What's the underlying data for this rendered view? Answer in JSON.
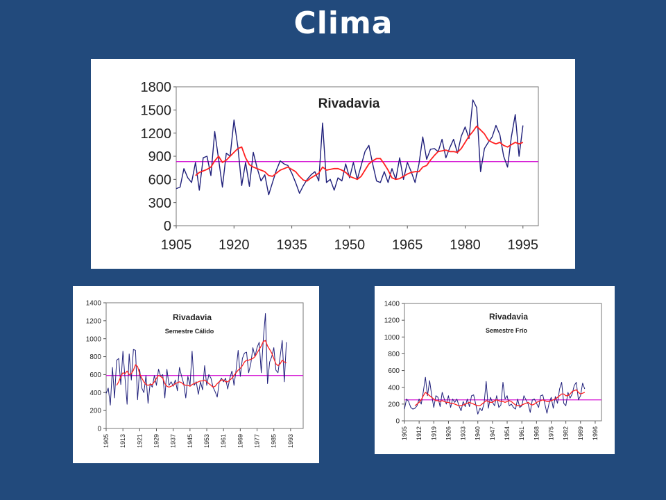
{
  "slide": {
    "title": "Clima"
  },
  "colors": {
    "background": "#224a7c",
    "raw": "#1f1f7a",
    "smooth": "#ff2020",
    "mean": "#d000d0"
  },
  "chart_data": [
    {
      "type": "line",
      "title": "Rivadavia",
      "subtitle": "",
      "xlim": [
        1905,
        1999
      ],
      "ylim": [
        0,
        1800
      ],
      "xticks": [
        1905,
        1920,
        1935,
        1950,
        1965,
        1980,
        1995
      ],
      "yticks": [
        0,
        300,
        600,
        900,
        1200,
        1500,
        1800
      ],
      "mean_line": 830,
      "x_start": 1905,
      "series": [
        {
          "values": [
            480,
            500,
            740,
            620,
            560,
            820,
            460,
            880,
            900,
            650,
            1220,
            860,
            500,
            940,
            900,
            1370,
            1020,
            520,
            820,
            510,
            950,
            750,
            580,
            660,
            400,
            560,
            720,
            840,
            800,
            780,
            680,
            560,
            420,
            520,
            600,
            660,
            700,
            580,
            1330,
            560,
            600,
            460,
            620,
            580,
            800,
            620,
            820,
            600,
            780,
            960,
            1040,
            800,
            580,
            560,
            700,
            560,
            740,
            600,
            880,
            600,
            820,
            700,
            560,
            800,
            1150,
            860,
            990,
            1000,
            960,
            1120,
            880,
            1010,
            1120,
            940,
            1160,
            1280,
            1130,
            1630,
            1530,
            700,
            1000,
            1080,
            1150,
            1300,
            1180,
            900,
            760,
            1150,
            1440,
            900,
            1300
          ]
        },
        {
          "values": [
            null,
            null,
            null,
            null,
            null,
            650,
            690,
            710,
            730,
            760,
            840,
            900,
            820,
            850,
            900,
            950,
            1000,
            1020,
            880,
            790,
            760,
            740,
            720,
            700,
            650,
            640,
            680,
            720,
            740,
            760,
            730,
            700,
            640,
            590,
            580,
            620,
            650,
            680,
            760,
            720,
            730,
            740,
            740,
            720,
            690,
            640,
            620,
            600,
            640,
            720,
            800,
            840,
            870,
            870,
            800,
            720,
            620,
            600,
            610,
            640,
            670,
            690,
            700,
            700,
            760,
            780,
            850,
            910,
            960,
            970,
            980,
            960,
            960,
            950,
            1000,
            1080,
            1160,
            1220,
            1290,
            1240,
            1190,
            1110,
            1080,
            1060,
            1080,
            1040,
            1020,
            1050,
            1080,
            1060,
            1080
          ]
        }
      ]
    },
    {
      "type": "line",
      "title": "Rivadavia",
      "subtitle": "Semestre Cálido",
      "xlim": [
        1905,
        1999
      ],
      "ylim": [
        0,
        1400
      ],
      "xticks": [
        1905,
        1913,
        1921,
        1929,
        1937,
        1945,
        1953,
        1961,
        1969,
        1977,
        1985,
        1993
      ],
      "yticks": [
        0,
        200,
        400,
        600,
        800,
        1000,
        1200,
        1400
      ],
      "mean_line": 590,
      "x_start": 1905,
      "series": [
        {
          "values": [
            390,
            450,
            260,
            680,
            340,
            760,
            780,
            490,
            860,
            560,
            270,
            830,
            540,
            880,
            870,
            320,
            660,
            450,
            400,
            590,
            280,
            500,
            460,
            590,
            480,
            660,
            580,
            600,
            340,
            660,
            480,
            520,
            470,
            540,
            420,
            680,
            580,
            500,
            340,
            580,
            480,
            860,
            480,
            520,
            380,
            520,
            430,
            700,
            480,
            600,
            560,
            460,
            410,
            350,
            520,
            560,
            520,
            560,
            440,
            560,
            640,
            480,
            650,
            870,
            580,
            780,
            840,
            850,
            620,
            720,
            900,
            800,
            900,
            960,
            620,
            1000,
            1280,
            500,
            740,
            800,
            900,
            650,
            620,
            800,
            980,
            520,
            960
          ]
        },
        {
          "values": [
            null,
            null,
            null,
            null,
            null,
            480,
            520,
            580,
            620,
            610,
            640,
            600,
            610,
            650,
            710,
            690,
            610,
            560,
            520,
            490,
            480,
            490,
            490,
            520,
            560,
            590,
            580,
            560,
            500,
            470,
            460,
            470,
            480,
            500,
            510,
            520,
            510,
            490,
            480,
            480,
            470,
            490,
            500,
            510,
            520,
            530,
            530,
            540,
            520,
            500,
            480,
            460,
            470,
            500,
            520,
            540,
            540,
            520,
            520,
            540,
            560,
            590,
            620,
            650,
            670,
            700,
            740,
            760,
            760,
            770,
            780,
            800,
            840,
            880,
            920,
            970,
            980,
            920,
            880,
            840,
            780,
            720,
            700,
            720,
            760,
            740,
            730
          ]
        }
      ]
    },
    {
      "type": "line",
      "title": "Rivadavia",
      "subtitle": "Semestre Frío",
      "xlim": [
        1905,
        1999
      ],
      "ylim": [
        0,
        1400
      ],
      "xticks": [
        1905,
        1912,
        1919,
        1926,
        1933,
        1940,
        1947,
        1954,
        1961,
        1968,
        1975,
        1982,
        1989,
        1996
      ],
      "yticks": [
        0,
        200,
        400,
        600,
        800,
        1000,
        1200,
        1400
      ],
      "mean_line": 250,
      "x_start": 1905,
      "series": [
        {
          "values": [
            140,
            260,
            230,
            160,
            140,
            150,
            180,
            260,
            200,
            350,
            520,
            300,
            480,
            300,
            160,
            300,
            280,
            170,
            340,
            260,
            200,
            300,
            160,
            260,
            220,
            260,
            180,
            120,
            230,
            170,
            260,
            170,
            300,
            310,
            200,
            80,
            150,
            120,
            210,
            470,
            150,
            280,
            220,
            180,
            300,
            160,
            190,
            460,
            260,
            300,
            180,
            200,
            160,
            140,
            260,
            160,
            180,
            300,
            250,
            200,
            100,
            250,
            260,
            210,
            160,
            300,
            310,
            200,
            90,
            210,
            280,
            150,
            290,
            210,
            380,
            460,
            210,
            180,
            340,
            270,
            320,
            420,
            460,
            250,
            300,
            450,
            380
          ]
        },
        {
          "values": [
            null,
            null,
            null,
            null,
            null,
            180,
            200,
            220,
            250,
            300,
            340,
            320,
            300,
            280,
            260,
            240,
            240,
            230,
            240,
            230,
            220,
            220,
            210,
            210,
            200,
            190,
            180,
            180,
            190,
            200,
            210,
            220,
            210,
            200,
            190,
            180,
            180,
            200,
            220,
            240,
            230,
            220,
            220,
            240,
            250,
            240,
            230,
            230,
            220,
            230,
            240,
            230,
            210,
            190,
            180,
            180,
            190,
            200,
            210,
            220,
            200,
            190,
            200,
            220,
            230,
            240,
            250,
            240,
            230,
            230,
            240,
            250,
            260,
            280,
            300,
            320,
            320,
            300,
            300,
            320,
            350,
            360,
            370,
            340,
            320,
            330,
            340
          ]
        }
      ]
    }
  ]
}
